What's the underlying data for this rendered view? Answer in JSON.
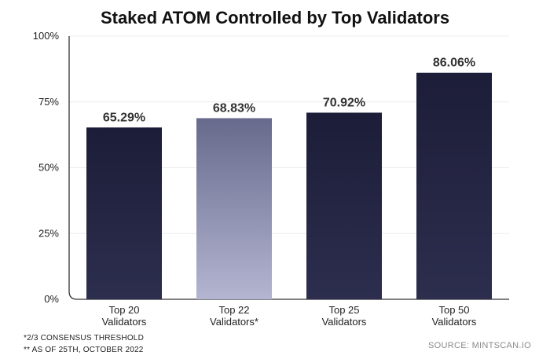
{
  "chart_data": {
    "type": "bar",
    "title": "Staked ATOM Controlled by Top Validators",
    "categories": [
      [
        "Top 20",
        "Validators"
      ],
      [
        "Top 22",
        "Validators*"
      ],
      [
        "Top 25",
        "Validators"
      ],
      [
        "Top 50",
        "Validators"
      ]
    ],
    "values": [
      65.29,
      68.83,
      70.92,
      86.06
    ],
    "value_labels": [
      "65.29%",
      "68.83%",
      "70.92%",
      "86.06%"
    ],
    "highlighted_index": 1,
    "ylim": [
      0,
      100
    ],
    "yticks": [
      0,
      25,
      50,
      75,
      100
    ],
    "ytick_labels": [
      "0%",
      "25%",
      "50%",
      "75%",
      "100%"
    ],
    "xlabel": "",
    "ylabel": "",
    "grid": true,
    "colors": {
      "bar_top": "#1c1d38",
      "bar_bottom": "#2d2e4e",
      "highlight_top": "#676a8c",
      "highlight_bottom": "#b3b5d1",
      "grid": "#ececec",
      "axis": "#333333"
    }
  },
  "footnotes": [
    "*2/3 CONSENSUS THRESHOLD",
    "** AS OF 25TH, OCTOBER 2022"
  ],
  "source": "SOURCE: MINTSCAN.IO"
}
